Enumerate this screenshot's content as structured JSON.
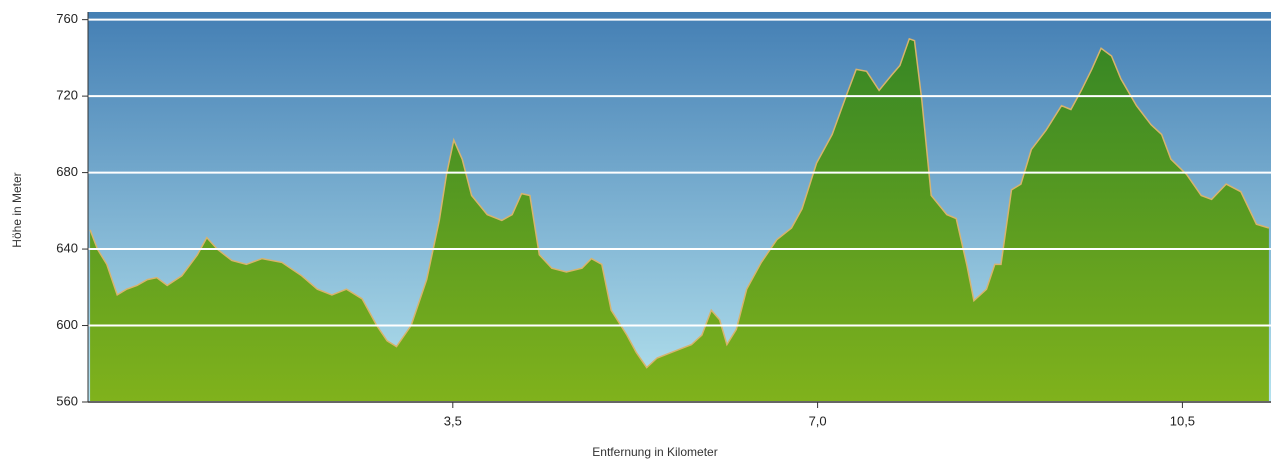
{
  "chart_data": {
    "type": "area",
    "xlabel": "Entfernung in Kilometer",
    "ylabel": "Höhe in Meter",
    "x": [
      0.02,
      0.09,
      0.18,
      0.28,
      0.37,
      0.47,
      0.57,
      0.66,
      0.76,
      0.9,
      1.05,
      1.14,
      1.24,
      1.38,
      1.52,
      1.67,
      1.86,
      2.05,
      2.2,
      2.34,
      2.48,
      2.63,
      2.77,
      2.87,
      2.96,
      3.1,
      3.25,
      3.37,
      3.44,
      3.51,
      3.59,
      3.68,
      3.83,
      3.97,
      4.07,
      4.16,
      4.24,
      4.33,
      4.45,
      4.59,
      4.74,
      4.83,
      4.93,
      5.02,
      5.17,
      5.26,
      5.36,
      5.46,
      5.6,
      5.79,
      5.89,
      5.98,
      6.06,
      6.13,
      6.22,
      6.32,
      6.46,
      6.61,
      6.75,
      6.85,
      6.99,
      7.14,
      7.28,
      7.37,
      7.47,
      7.59,
      7.71,
      7.79,
      7.88,
      7.93,
      8.0,
      8.09,
      8.24,
      8.33,
      8.43,
      8.5,
      8.62,
      8.7,
      8.76,
      8.86,
      8.95,
      9.05,
      9.19,
      9.34,
      9.43,
      9.53,
      9.63,
      9.72,
      9.82,
      9.91,
      10.06,
      10.2,
      10.3,
      10.39,
      10.54,
      10.68,
      10.78,
      10.92,
      11.06,
      11.21,
      11.33
    ],
    "values": [
      650,
      640,
      632,
      616,
      619,
      621,
      624,
      625,
      621,
      626,
      637,
      646,
      640,
      634,
      632,
      635,
      633,
      626,
      619,
      616,
      619,
      614,
      600,
      592,
      589,
      600,
      624,
      655,
      679,
      697,
      687,
      668,
      658,
      655,
      658,
      669,
      668,
      637,
      630,
      628,
      630,
      635,
      632,
      608,
      595,
      586,
      578,
      583,
      586,
      590,
      595,
      608,
      603,
      590,
      598,
      619,
      633,
      645,
      651,
      661,
      685,
      700,
      721,
      734,
      733,
      723,
      731,
      736,
      750,
      749,
      718,
      668,
      658,
      656,
      632,
      613,
      619,
      632,
      632,
      671,
      674,
      692,
      702,
      715,
      713,
      723,
      734,
      745,
      741,
      729,
      715,
      705,
      700,
      687,
      679,
      668,
      666,
      674,
      670,
      653,
      651
    ],
    "xlim": [
      0,
      11.35
    ],
    "ylim": [
      560,
      764
    ],
    "xticks": [
      {
        "value": 3.5,
        "label": "3,5"
      },
      {
        "value": 7.0,
        "label": "7,0"
      },
      {
        "value": 10.5,
        "label": "10,5"
      }
    ],
    "yticks": [
      560,
      600,
      640,
      680,
      720,
      760
    ],
    "grid": true,
    "color": "#4f9a24"
  }
}
